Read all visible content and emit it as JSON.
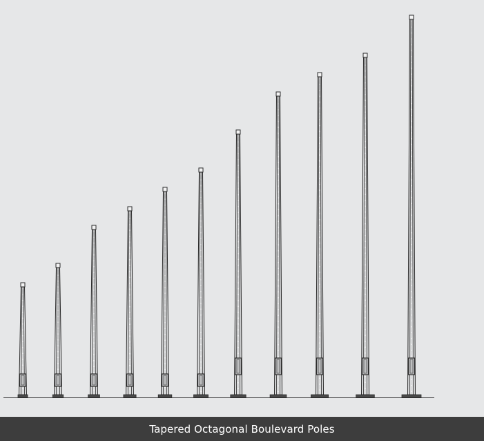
{
  "caption": {
    "text": "Tapered Octagonal Boulevard Poles"
  },
  "diagram": {
    "subject": "tapered-octagonal-pole-elevations",
    "pole_count": 11,
    "relative_heights": [
      0.42,
      0.49,
      0.63,
      0.7,
      0.77,
      0.84,
      0.98,
      1.12,
      1.19,
      1.26,
      1.4
    ],
    "colors": {
      "background": "#e6e7e8",
      "line": "#2b2b2b",
      "caption_bar": "#3d3d3d",
      "caption_text": "#ffffff"
    }
  }
}
